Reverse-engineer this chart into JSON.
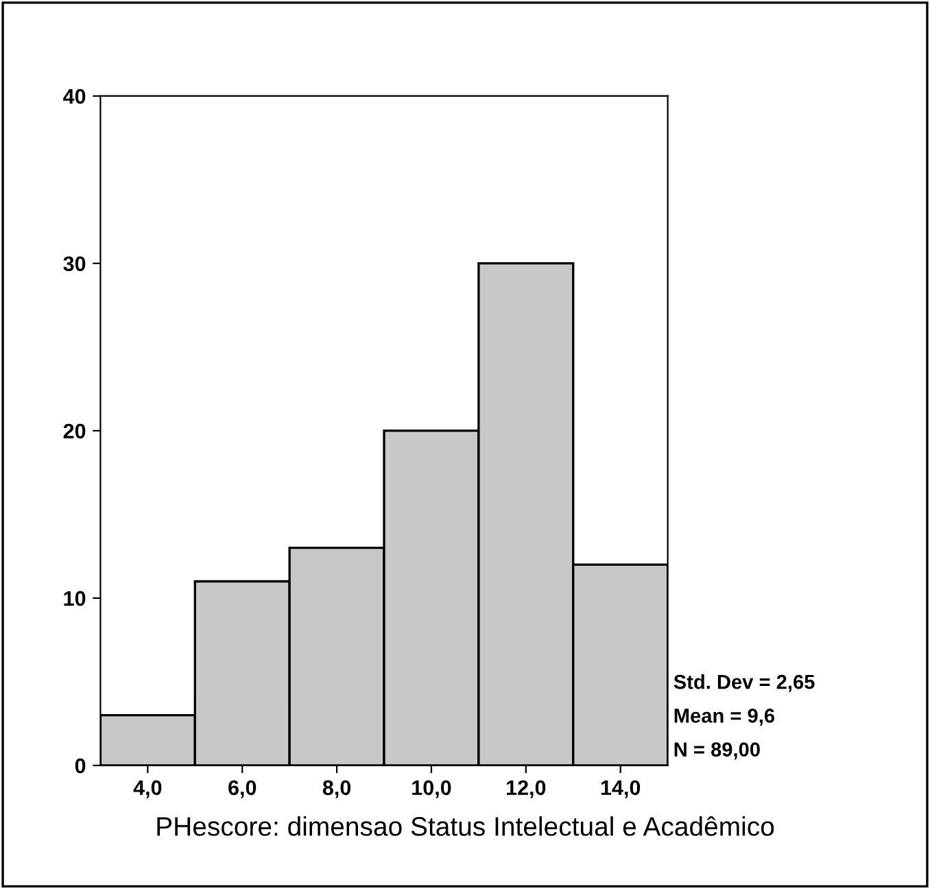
{
  "chart_data": {
    "type": "histogram",
    "xlabel": "PHescore: dimensao Status Intelectual e Acadêmico",
    "bins": [
      3,
      5,
      7,
      9,
      11,
      13,
      15
    ],
    "values": [
      3,
      11,
      13,
      20,
      30,
      12
    ],
    "color": "#c8c8c8",
    "xlim": [
      3,
      15
    ],
    "xticks": [
      {
        "value": 4,
        "label": "4,0"
      },
      {
        "value": 6,
        "label": "6,0"
      },
      {
        "value": 8,
        "label": "8,0"
      },
      {
        "value": 10,
        "label": "10,0"
      },
      {
        "value": 12,
        "label": "12,0"
      },
      {
        "value": 14,
        "label": "14,0"
      }
    ],
    "ylim": [
      0,
      40
    ],
    "yticks": [
      0,
      10,
      20,
      30,
      40
    ],
    "grid": false,
    "legend": false,
    "annotations": [
      "Std. Dev = 2,65",
      "Mean = 9,6",
      "N = 89,00"
    ]
  }
}
